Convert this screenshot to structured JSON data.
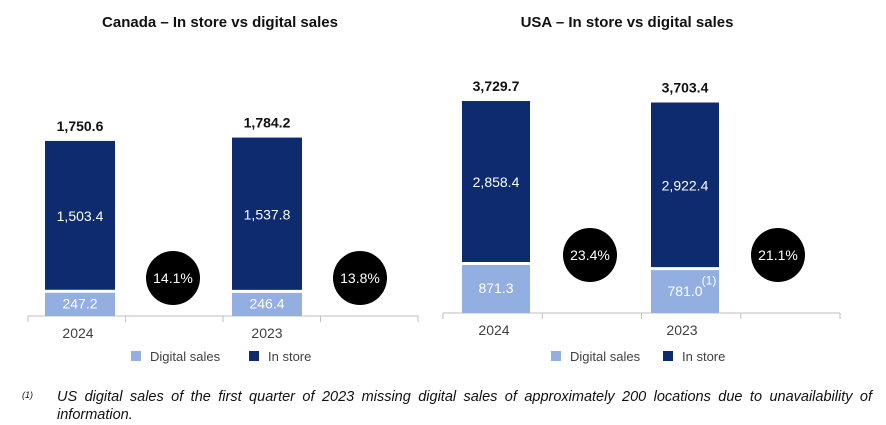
{
  "colors": {
    "in_store": "#0d2b6e",
    "digital": "#93aee0",
    "circle": "#000000",
    "axis": "#bfbfbf"
  },
  "legend": {
    "digital": "Digital sales",
    "in_store": "In store"
  },
  "footnote": {
    "marker": "(1)",
    "text": "US digital sales of the first quarter of 2023 missing digital sales of approximately 200 locations due to unavailability of information."
  },
  "chart_data": [
    {
      "type": "bar",
      "stacked": true,
      "title": "Canada – In store vs digital sales",
      "categories": [
        "2024",
        "2023"
      ],
      "series": [
        {
          "name": "Digital sales",
          "values": [
            247.2,
            246.4
          ],
          "labels": [
            "247.2",
            "246.4"
          ]
        },
        {
          "name": "In store",
          "values": [
            1503.4,
            1537.8
          ],
          "labels": [
            "1,503.4",
            "1,537.8"
          ]
        }
      ],
      "totals": [
        "1,750.6",
        "1,784.2"
      ],
      "digital_share": [
        "14.1%",
        "13.8%"
      ],
      "footnote_marks": [
        "",
        ""
      ],
      "ylim": [
        0,
        1900
      ],
      "legend_position": "bottom"
    },
    {
      "type": "bar",
      "stacked": true,
      "title": "USA – In store vs digital sales",
      "categories": [
        "2024",
        "2023"
      ],
      "series": [
        {
          "name": "Digital sales",
          "values": [
            871.3,
            781.0
          ],
          "labels": [
            "871.3",
            "781.0"
          ]
        },
        {
          "name": "In store",
          "values": [
            2858.4,
            2922.4
          ],
          "labels": [
            "2,858.4",
            "2,922.4"
          ]
        }
      ],
      "totals": [
        "3,729.7",
        "3,703.4"
      ],
      "digital_share": [
        "23.4%",
        "21.1%"
      ],
      "footnote_marks": [
        "",
        "(1)"
      ],
      "ylim": [
        0,
        3730
      ],
      "legend_position": "bottom"
    }
  ]
}
